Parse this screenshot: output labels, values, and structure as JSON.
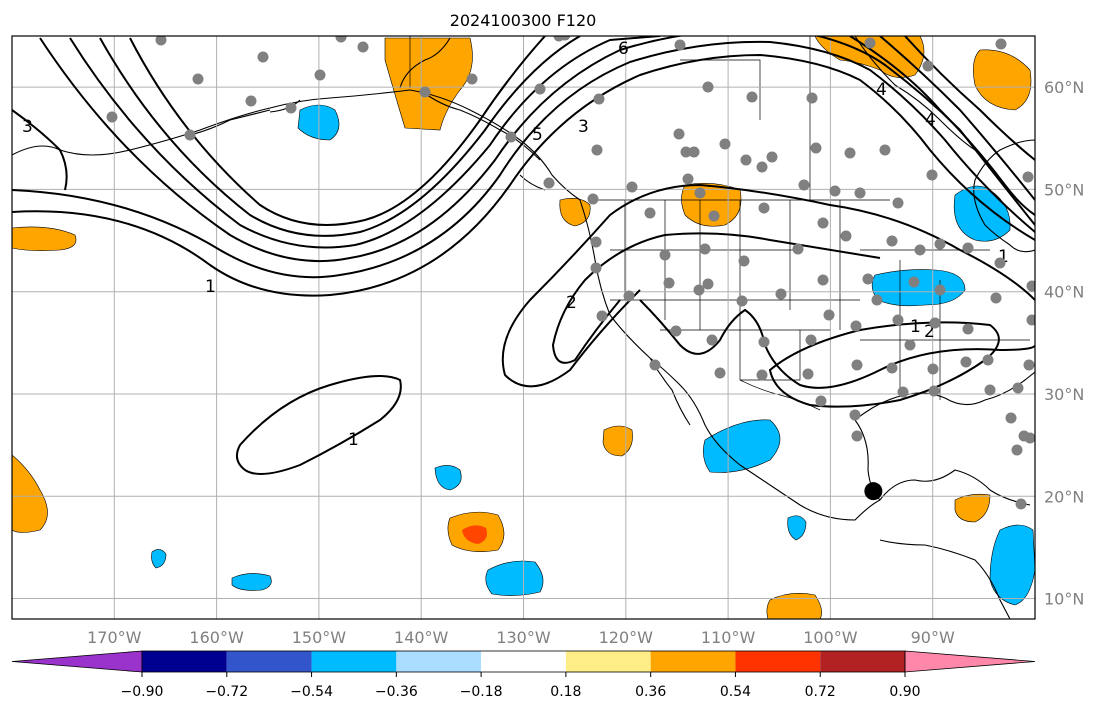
{
  "title": "2024100300 F120",
  "map": {
    "projection": "equirectangular",
    "lon_range": [
      -180,
      -80
    ],
    "lat_range": [
      8,
      65
    ],
    "lon_gridlines": [
      -170,
      -160,
      -150,
      -140,
      -130,
      -120,
      -110,
      -100,
      -90
    ],
    "lat_gridlines": [
      10,
      20,
      30,
      40,
      50,
      60
    ],
    "lon_tick_labels": [
      "170°W",
      "160°W",
      "150°W",
      "140°W",
      "130°W",
      "120°W",
      "110°W",
      "100°W",
      "90°W"
    ],
    "lat_tick_labels": [
      "10°N",
      "20°N",
      "30°N",
      "40°N",
      "50°N",
      "60°N"
    ],
    "grid": true,
    "contour_labels": [
      "3",
      "6",
      "5",
      "4",
      "3",
      "1",
      "2",
      "1",
      "1",
      "1",
      "2",
      "4"
    ],
    "marked_location": {
      "lon": -95.8,
      "lat": 20.5
    }
  },
  "colorbar": {
    "tick_labels": [
      "−0.90",
      "−0.72",
      "−0.54",
      "−0.36",
      "−0.18",
      "0.18",
      "0.36",
      "0.54",
      "0.72",
      "0.90"
    ],
    "colors": [
      "#9933cc",
      "#000090",
      "#3355cc",
      "#00bbff",
      "#aaddff",
      "#ffffff",
      "#ffee88",
      "#ffa500",
      "#ff3300",
      "#b22222",
      "#ff88aa"
    ]
  },
  "colors": {
    "orange": "#ffa500",
    "blue": "#00bbff",
    "red": "#ff4500",
    "station": "#808080",
    "grid": "#b0b0b0"
  }
}
